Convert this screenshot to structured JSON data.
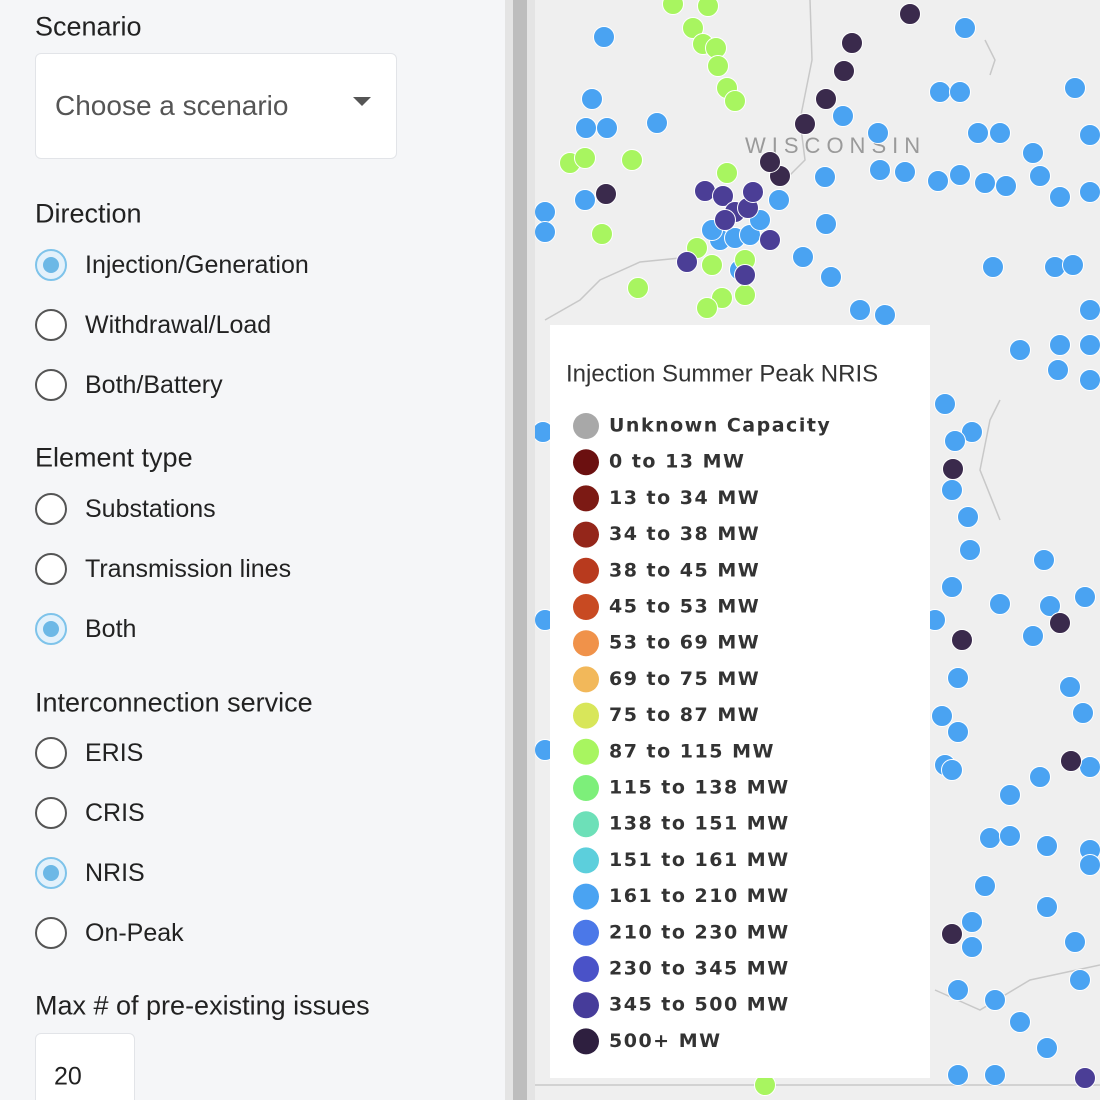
{
  "sidebar": {
    "scenario": {
      "label": "Scenario",
      "placeholder": "Choose a scenario"
    },
    "direction": {
      "label": "Direction",
      "options": [
        "Injection/Generation",
        "Withdrawal/Load",
        "Both/Battery"
      ],
      "selected": 0
    },
    "element_type": {
      "label": "Element type",
      "options": [
        "Substations",
        "Transmission lines",
        "Both"
      ],
      "selected": 2
    },
    "interconnection_service": {
      "label": "Interconnection service",
      "options": [
        "ERIS",
        "CRIS",
        "NRIS",
        "On-Peak"
      ],
      "selected": 2
    },
    "max_issues": {
      "label": "Max # of pre-existing issues",
      "value": 20
    }
  },
  "map": {
    "state_label": "WISCONSIN",
    "legend": {
      "title": "Injection Summer Peak NRIS",
      "items": [
        {
          "label": "Unknown Capacity",
          "color": "#a8a8a8"
        },
        {
          "label": "0 to 13 MW",
          "color": "#6b1010"
        },
        {
          "label": "13 to 34 MW",
          "color": "#7c1a14"
        },
        {
          "label": "34 to 38 MW",
          "color": "#94261a"
        },
        {
          "label": "38 to 45 MW",
          "color": "#b83a1e"
        },
        {
          "label": "45 to 53 MW",
          "color": "#c84a22"
        },
        {
          "label": "53 to 69 MW",
          "color": "#f0924a"
        },
        {
          "label": "69 to 75 MW",
          "color": "#f2b85a"
        },
        {
          "label": "75 to 87 MW",
          "color": "#d8e65a"
        },
        {
          "label": "87 to 115 MW",
          "color": "#a8f560"
        },
        {
          "label": "115 to 138 MW",
          "color": "#7def7a"
        },
        {
          "label": "138 to 151 MW",
          "color": "#6de0b8"
        },
        {
          "label": "151 to 161 MW",
          "color": "#5ccfdc"
        },
        {
          "label": "161 to 210 MW",
          "color": "#4aa3f2"
        },
        {
          "label": "210 to 230 MW",
          "color": "#4b78e8"
        },
        {
          "label": "230 to 345 MW",
          "color": "#4a52c8"
        },
        {
          "label": "345 to 500 MW",
          "color": "#463c9a"
        },
        {
          "label": "500+ MW",
          "color": "#2e1f3f"
        }
      ]
    }
  }
}
